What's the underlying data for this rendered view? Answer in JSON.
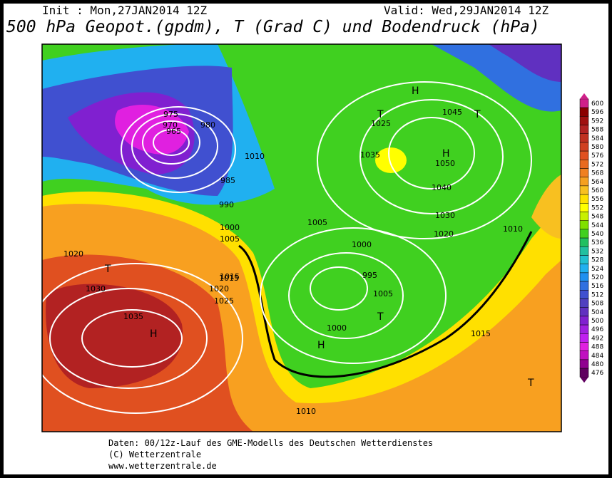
{
  "header": {
    "init": "Init : Mon,27JAN2014 12Z",
    "valid": "Valid: Wed,29JAN2014 12Z",
    "title": "500 hPa Geopot.(gpdm), T (Grad C) und Bodendruck (hPa)"
  },
  "legend": {
    "labels": [
      600,
      596,
      592,
      588,
      584,
      580,
      576,
      572,
      568,
      564,
      560,
      556,
      552,
      548,
      544,
      540,
      536,
      532,
      528,
      524,
      520,
      516,
      512,
      508,
      504,
      500,
      496,
      492,
      488,
      484,
      480,
      476
    ],
    "colors": [
      "#d0208a",
      "#8b0000",
      "#a01010",
      "#b22222",
      "#c03020",
      "#d04020",
      "#e05020",
      "#e86a20",
      "#f08020",
      "#f5a020",
      "#f8c020",
      "#ffe000",
      "#ffff00",
      "#c8f000",
      "#80e000",
      "#40d020",
      "#20c060",
      "#20c0a0",
      "#20c0d0",
      "#20b0f0",
      "#2090f0",
      "#3070e0",
      "#4050d0",
      "#5040c0",
      "#6030c0",
      "#8020d0",
      "#a020e0",
      "#c020f0",
      "#e020e0",
      "#c010c0",
      "#900090",
      "#600060"
    ]
  },
  "map_labels": [
    "1035",
    "H",
    "1030",
    "1025",
    "1020",
    "1015",
    "T",
    "H",
    "1050",
    "1040",
    "1045",
    "1035",
    "1030",
    "1020",
    "T",
    "965",
    "970",
    "975",
    "980",
    "985",
    "990",
    "1000",
    "1005",
    "1010",
    "995",
    "1000",
    "1005",
    "T",
    "H",
    "1015",
    "1010",
    "1020",
    "T",
    "H",
    "1025",
    "1015",
    "T",
    "1010",
    "1005",
    "1000"
  ],
  "footer": {
    "line1": "Daten: 00/12z-Lauf des GME-Modells des Deutschen Wetterdienstes",
    "line2": "(C) Wetterzentrale",
    "line3": "www.wetterzentrale.de"
  }
}
